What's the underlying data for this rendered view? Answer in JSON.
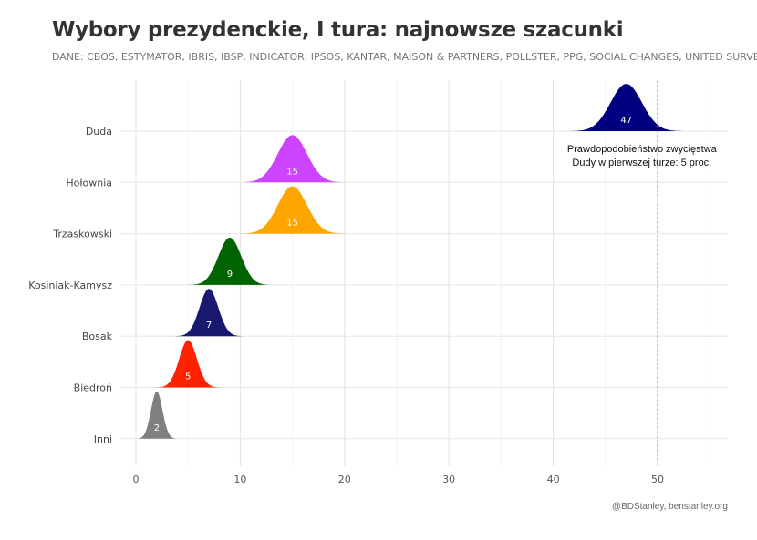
{
  "chart_data": {
    "type": "ridgeline",
    "title": "Wybory prezydenckie, I tura: najnowsze szacunki",
    "subtitle": "DANE: CBOS, ESTYMATOR, IBRIS, IBSP, INDICATOR, IPSOS, KANTAR, MAISON & PARTNERS, POLLSTER, PPG, SOCIAL CHANGES, UNITED SURVEY",
    "caption": "@BDStanley, benstanley.org",
    "xlim": [
      -2,
      57
    ],
    "x_ticks": [
      0,
      10,
      20,
      30,
      40,
      50
    ],
    "grid": true,
    "series": [
      {
        "name": "Duda",
        "mean": 47,
        "label": "47",
        "spread": 1.5,
        "color": "#000080"
      },
      {
        "name": "Hołownia",
        "mean": 15,
        "label": "15",
        "spread": 1.4,
        "color": "#cc44ff"
      },
      {
        "name": "Trzaskowski",
        "mean": 15,
        "label": "15",
        "spread": 1.4,
        "color": "#ffa500"
      },
      {
        "name": "Kosiniak-Kamysz",
        "mean": 9,
        "label": "9",
        "spread": 1.1,
        "color": "#006400"
      },
      {
        "name": "Bosak",
        "mean": 7,
        "label": "7",
        "spread": 0.9,
        "color": "#191970"
      },
      {
        "name": "Biedroń",
        "mean": 5,
        "label": "5",
        "spread": 0.85,
        "color": "#ff2200"
      },
      {
        "name": "Inni",
        "mean": 2,
        "label": "2",
        "spread": 0.55,
        "color": "#808080"
      }
    ],
    "reference_line": {
      "x": 50
    },
    "annotation": {
      "x": 48.5,
      "series": "Duda",
      "lines": [
        "Prawdopodobieństwo zwycięstwa",
        "Dudy w pierwszej turze: 5 proc."
      ]
    }
  }
}
